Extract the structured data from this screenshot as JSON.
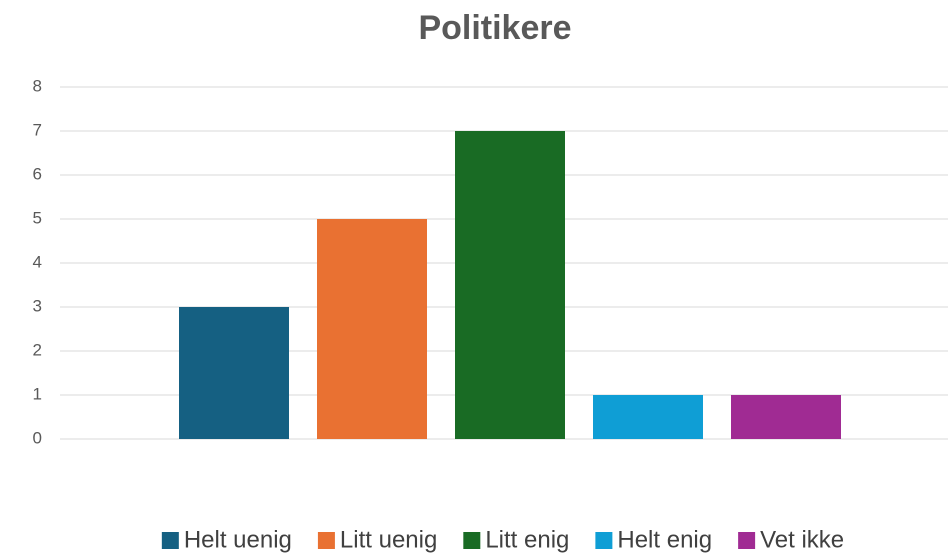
{
  "chart_data": {
    "type": "bar",
    "title": "Politikere",
    "categories": [
      null
    ],
    "series": [
      {
        "name": "Helt uenig",
        "color": "#156082",
        "values": [
          3
        ]
      },
      {
        "name": "Litt uenig",
        "color": "#e97132",
        "values": [
          5
        ]
      },
      {
        "name": "Litt enig",
        "color": "#196b24",
        "values": [
          7
        ]
      },
      {
        "name": "Helt enig",
        "color": "#0f9ed5",
        "values": [
          1
        ]
      },
      {
        "name": "Vet ikke",
        "color": "#a02b93",
        "values": [
          1
        ]
      }
    ],
    "ylim": [
      0,
      8
    ],
    "yticks": [
      0,
      1,
      2,
      3,
      4,
      5,
      6,
      7,
      8
    ],
    "grid": true,
    "legend": "bottom"
  }
}
